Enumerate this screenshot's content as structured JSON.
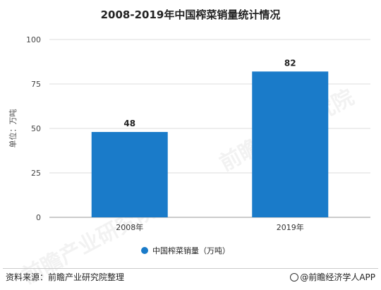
{
  "title": "2008-2019年中国榨菜销量统计情况",
  "chart_data": {
    "type": "bar",
    "categories": [
      "2008年",
      "2019年"
    ],
    "series": [
      {
        "name": "中国榨菜销量（万吨）",
        "values": [
          48,
          82
        ],
        "color": "#1a7bc9"
      }
    ],
    "ylabel": "单位：万吨",
    "ylim": [
      0,
      100
    ],
    "yticks": [
      0,
      25,
      50,
      75,
      100
    ],
    "grid": true,
    "legend": "bottom"
  },
  "footer": {
    "source": "资料来源：前瞻产业研究院整理",
    "brand": "@前瞻经济学人APP"
  },
  "watermark": "前瞻产业研究院"
}
